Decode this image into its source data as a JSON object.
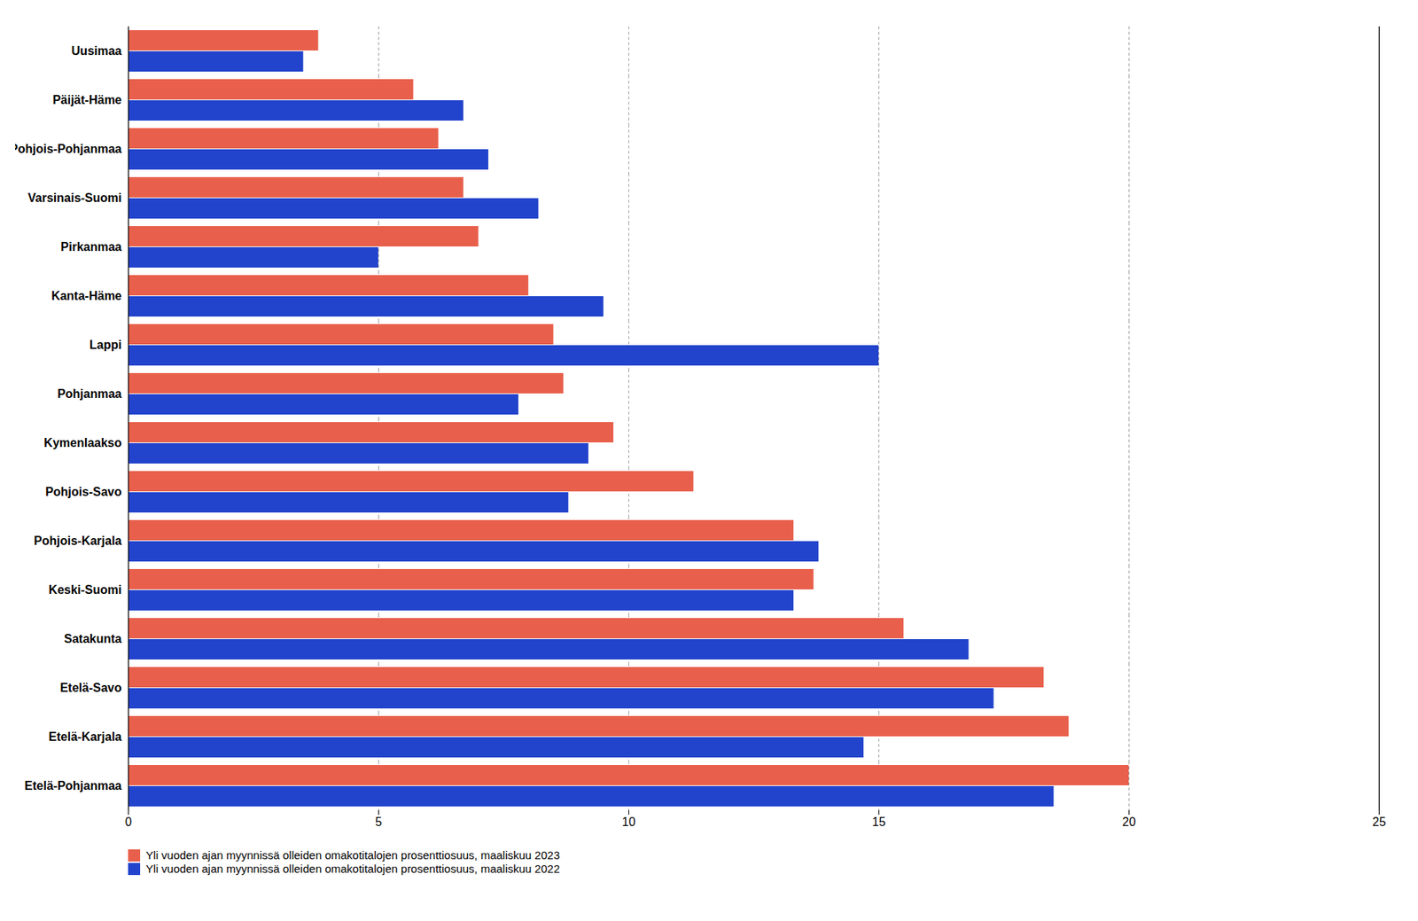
{
  "chart_data": {
    "type": "bar",
    "orientation": "horizontal",
    "categories": [
      "Etelä-Pohjanmaa",
      "Etelä-Karjala",
      "Etelä-Savo",
      "Satakunta",
      "Keski-Suomi",
      "Pohjois-Karjala",
      "Pohjois-Savo",
      "Kymenlaakso",
      "Pohjanmaa",
      "Lappi",
      "Kanta-Häme",
      "Pirkanmaa",
      "Varsinais-Suomi",
      "Pohjois-Pohjanmaa",
      "Päijät-Häme",
      "Uusimaa"
    ],
    "series": [
      {
        "name": "Yli vuoden ajan myynnissä olleiden omakotitalojen prosenttiosuus, maaliskuu 2023",
        "color": "#E8604C",
        "values": [
          20.0,
          18.8,
          18.3,
          15.5,
          13.7,
          13.3,
          11.3,
          9.7,
          8.7,
          8.5,
          8.0,
          7.0,
          6.7,
          6.2,
          5.7,
          3.8
        ]
      },
      {
        "name": "Yli vuoden ajan myynnissä olleiden omakotitalojen prosenttiosuus, maaliskuu 2022",
        "color": "#2244CC",
        "values": [
          18.5,
          14.7,
          17.3,
          16.8,
          13.3,
          13.8,
          8.8,
          9.2,
          7.8,
          15.0,
          9.5,
          5.0,
          8.2,
          7.2,
          6.7,
          3.5
        ]
      }
    ],
    "xlim": [
      0,
      25
    ],
    "xticks": [
      0,
      5,
      10,
      15,
      20,
      25
    ],
    "grid": true,
    "legend": "bottom"
  }
}
